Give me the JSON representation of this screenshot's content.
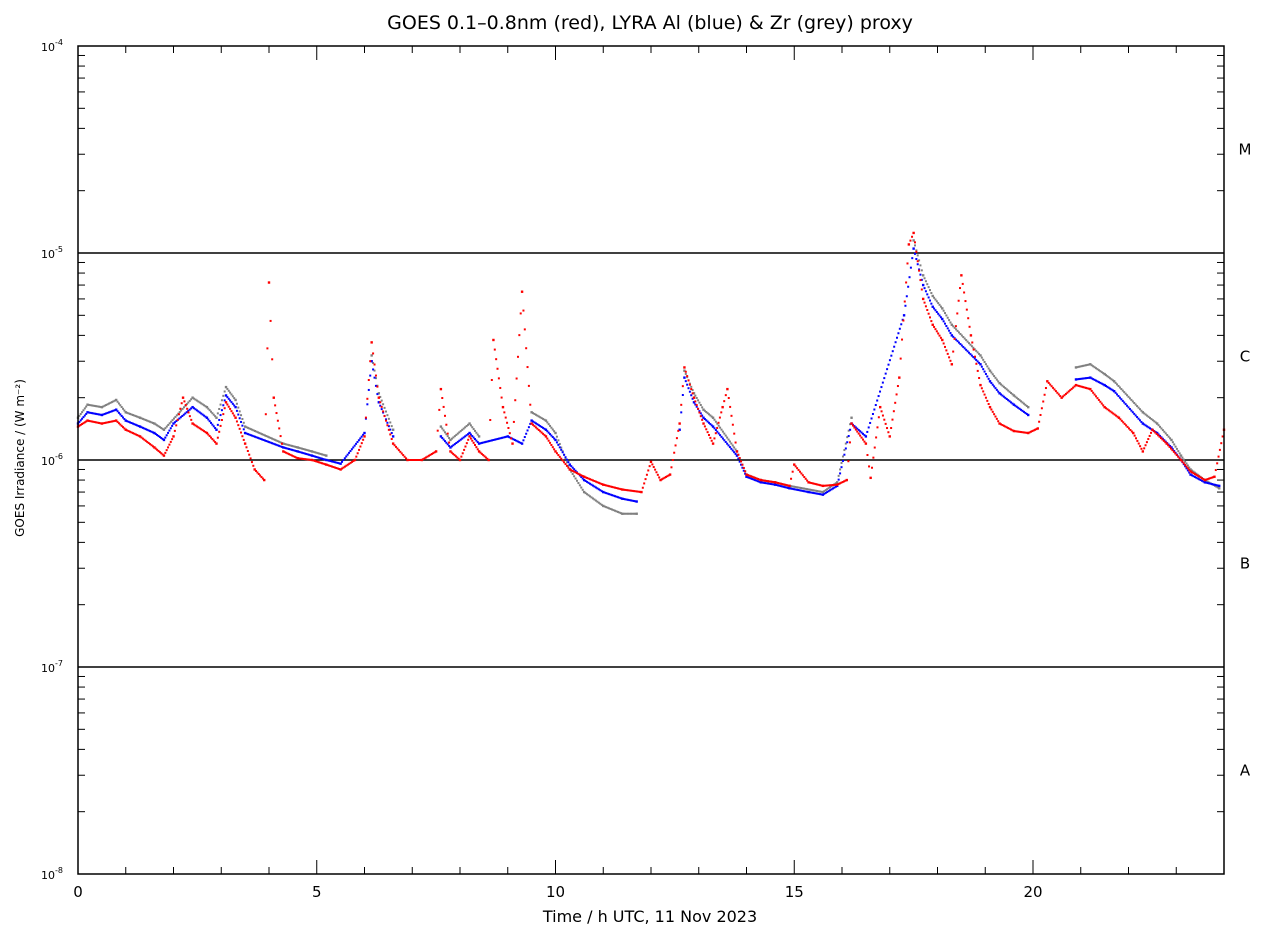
{
  "chart_data": {
    "type": "scatter",
    "title": "GOES 0.1–0.8nm (red), LYRA Al (blue) & Zr (grey) proxy",
    "xlabel": "Time / h UTC, 11 Nov 2023",
    "ylabel": "GOES Irradiance / (W m⁻²)",
    "xlim": [
      0,
      24
    ],
    "ylim": [
      1e-08,
      0.0001
    ],
    "yscale": "log",
    "x_ticks": [
      0,
      5,
      10,
      15,
      20
    ],
    "x_tick_labels": [
      "0",
      "5",
      "10",
      "15",
      "20"
    ],
    "y_ticks": [
      1e-08,
      1e-07,
      1e-06,
      1e-05,
      0.0001
    ],
    "y_tick_labels": [
      {
        "base": "10",
        "exp": "-8"
      },
      {
        "base": "10",
        "exp": "-7"
      },
      {
        "base": "10",
        "exp": "-6"
      },
      {
        "base": "10",
        "exp": "-5"
      },
      {
        "base": "10",
        "exp": "-4"
      }
    ],
    "class_levels": [
      1e-07,
      1e-06,
      1e-05
    ],
    "class_labels": [
      {
        "label": "A",
        "value": 3.2e-08
      },
      {
        "label": "B",
        "value": 3.2e-07
      },
      {
        "label": "C",
        "value": 3.2e-06
      },
      {
        "label": "M",
        "value": 3.2e-05
      }
    ],
    "grid": false,
    "series": [
      {
        "color": "#ff0000",
        "points": [
          [
            0.0,
            1.45e-06
          ],
          [
            0.2,
            1.55e-06
          ],
          [
            0.5,
            1.5e-06
          ],
          [
            0.8,
            1.55e-06
          ],
          [
            1.0,
            1.4e-06
          ],
          [
            1.3,
            1.3e-06
          ],
          [
            1.6,
            1.15e-06
          ],
          [
            1.8,
            1.05e-06
          ],
          [
            2.0,
            1.3e-06
          ],
          [
            2.2,
            2e-06
          ],
          [
            2.4,
            1.5e-06
          ],
          [
            2.7,
            1.35e-06
          ],
          [
            2.9,
            1.2e-06
          ],
          [
            3.1,
            1.9e-06
          ],
          [
            3.3,
            1.6e-06
          ],
          [
            3.5,
            1.2e-06
          ],
          [
            3.7,
            9e-07
          ],
          [
            3.9,
            8e-07
          ],
          [
            4.0,
            7.2e-06
          ],
          [
            4.1,
            2e-06
          ],
          [
            4.3,
            1.1e-06
          ],
          [
            4.6,
            1.02e-06
          ],
          [
            4.9,
            1e-06
          ],
          [
            5.2,
            9.5e-07
          ],
          [
            5.5,
            9e-07
          ],
          [
            5.8,
            1e-06
          ],
          [
            6.0,
            1.3e-06
          ],
          [
            6.15,
            3.7e-06
          ],
          [
            6.3,
            2e-06
          ],
          [
            6.6,
            1.2e-06
          ],
          [
            6.9,
            1e-06
          ],
          [
            7.2,
            1e-06
          ],
          [
            7.5,
            1.1e-06
          ],
          [
            7.6,
            2.2e-06
          ],
          [
            7.8,
            1.1e-06
          ],
          [
            8.0,
            1e-06
          ],
          [
            8.2,
            1.3e-06
          ],
          [
            8.4,
            1.1e-06
          ],
          [
            8.6,
            1e-06
          ],
          [
            8.7,
            3.8e-06
          ],
          [
            8.9,
            1.8e-06
          ],
          [
            9.1,
            1.2e-06
          ],
          [
            9.3,
            6.5e-06
          ],
          [
            9.5,
            1.5e-06
          ],
          [
            9.8,
            1.3e-06
          ],
          [
            10.0,
            1.1e-06
          ],
          [
            10.3,
            9e-07
          ],
          [
            10.6,
            8.3e-07
          ],
          [
            11.0,
            7.6e-07
          ],
          [
            11.4,
            7.2e-07
          ],
          [
            11.8,
            7e-07
          ],
          [
            12.0,
            9.8e-07
          ],
          [
            12.2,
            8e-07
          ],
          [
            12.4,
            8.5e-07
          ],
          [
            12.6,
            1.5e-06
          ],
          [
            12.7,
            2.8e-06
          ],
          [
            12.9,
            2e-06
          ],
          [
            13.1,
            1.5e-06
          ],
          [
            13.3,
            1.2e-06
          ],
          [
            13.5,
            1.8e-06
          ],
          [
            13.6,
            2.2e-06
          ],
          [
            13.8,
            1.1e-06
          ],
          [
            14.0,
            8.5e-07
          ],
          [
            14.3,
            8e-07
          ],
          [
            14.6,
            7.8e-07
          ],
          [
            14.9,
            7.5e-07
          ],
          [
            15.0,
            9.5e-07
          ],
          [
            15.3,
            7.8e-07
          ],
          [
            15.6,
            7.5e-07
          ],
          [
            15.9,
            7.6e-07
          ],
          [
            16.1,
            8e-07
          ],
          [
            16.2,
            1.5e-06
          ],
          [
            16.5,
            1.2e-06
          ],
          [
            16.6,
            8.2e-07
          ],
          [
            16.8,
            1.8e-06
          ],
          [
            17.0,
            1.3e-06
          ],
          [
            17.2,
            2.5e-06
          ],
          [
            17.4,
            1.1e-05
          ],
          [
            17.5,
            1.25e-05
          ],
          [
            17.7,
            6e-06
          ],
          [
            17.9,
            4.5e-06
          ],
          [
            18.1,
            3.8e-06
          ],
          [
            18.3,
            2.9e-06
          ],
          [
            18.5,
            7.8e-06
          ],
          [
            18.7,
            4e-06
          ],
          [
            18.9,
            2.3e-06
          ],
          [
            19.1,
            1.8e-06
          ],
          [
            19.3,
            1.5e-06
          ],
          [
            19.6,
            1.38e-06
          ],
          [
            19.9,
            1.35e-06
          ],
          [
            20.1,
            1.42e-06
          ],
          [
            20.3,
            2.4e-06
          ],
          [
            20.6,
            2e-06
          ],
          [
            20.9,
            2.3e-06
          ],
          [
            21.2,
            2.2e-06
          ],
          [
            21.5,
            1.8e-06
          ],
          [
            21.8,
            1.6e-06
          ],
          [
            22.1,
            1.35e-06
          ],
          [
            22.3,
            1.1e-06
          ],
          [
            22.5,
            1.4e-06
          ],
          [
            22.8,
            1.2e-06
          ],
          [
            23.1,
            1e-06
          ],
          [
            23.3,
            8.8e-07
          ],
          [
            23.6,
            8e-07
          ],
          [
            23.8,
            8.3e-07
          ],
          [
            24.0,
            1.4e-06
          ]
        ]
      },
      {
        "color": "#0000ff",
        "points": [
          [
            0.0,
            1.5e-06
          ],
          [
            0.2,
            1.7e-06
          ],
          [
            0.5,
            1.65e-06
          ],
          [
            0.8,
            1.75e-06
          ],
          [
            1.0,
            1.55e-06
          ],
          [
            1.3,
            1.45e-06
          ],
          [
            1.6,
            1.35e-06
          ],
          [
            1.8,
            1.25e-06
          ],
          [
            2.0,
            1.5e-06
          ],
          [
            2.4,
            1.8e-06
          ],
          [
            2.7,
            1.6e-06
          ],
          [
            2.9,
            1.4e-06
          ],
          [
            3.1,
            2.05e-06
          ],
          [
            3.3,
            1.8e-06
          ],
          [
            3.5,
            1.35e-06
          ],
          [
            4.3,
            1.15e-06
          ],
          [
            4.6,
            1.1e-06
          ],
          [
            4.9,
            1.05e-06
          ],
          [
            5.2,
            1e-06
          ],
          [
            5.5,
            9.6e-07
          ],
          [
            6.0,
            1.35e-06
          ],
          [
            6.15,
            3e-06
          ],
          [
            6.3,
            1.9e-06
          ],
          [
            6.6,
            1.3e-06
          ],
          [
            7.6,
            1.3e-06
          ],
          [
            7.8,
            1.15e-06
          ],
          [
            8.2,
            1.35e-06
          ],
          [
            8.4,
            1.2e-06
          ],
          [
            9.0,
            1.3e-06
          ],
          [
            9.3,
            1.2e-06
          ],
          [
            9.5,
            1.55e-06
          ],
          [
            9.8,
            1.4e-06
          ],
          [
            10.0,
            1.25e-06
          ],
          [
            10.3,
            9.5e-07
          ],
          [
            10.6,
            8e-07
          ],
          [
            11.0,
            7e-07
          ],
          [
            11.4,
            6.5e-07
          ],
          [
            11.7,
            6.3e-07
          ],
          [
            12.6,
            1.4e-06
          ],
          [
            12.7,
            2.5e-06
          ],
          [
            12.9,
            1.9e-06
          ],
          [
            13.1,
            1.6e-06
          ],
          [
            13.3,
            1.45e-06
          ],
          [
            13.8,
            1.05e-06
          ],
          [
            14.0,
            8.3e-07
          ],
          [
            14.3,
            7.8e-07
          ],
          [
            14.6,
            7.6e-07
          ],
          [
            14.9,
            7.3e-07
          ],
          [
            15.3,
            7e-07
          ],
          [
            15.6,
            6.8e-07
          ],
          [
            15.9,
            7.5e-07
          ],
          [
            16.2,
            1.5e-06
          ],
          [
            16.5,
            1.3e-06
          ],
          [
            17.3,
            5e-06
          ],
          [
            17.5,
            1.05e-05
          ],
          [
            17.7,
            7e-06
          ],
          [
            17.9,
            5.5e-06
          ],
          [
            18.1,
            4.8e-06
          ],
          [
            18.3,
            4e-06
          ],
          [
            18.9,
            2.9e-06
          ],
          [
            19.1,
            2.4e-06
          ],
          [
            19.3,
            2.1e-06
          ],
          [
            19.6,
            1.85e-06
          ],
          [
            19.9,
            1.65e-06
          ],
          [
            20.9,
            2.45e-06
          ],
          [
            21.2,
            2.5e-06
          ],
          [
            21.5,
            2.3e-06
          ],
          [
            21.7,
            2.15e-06
          ],
          [
            22.3,
            1.5e-06
          ],
          [
            22.6,
            1.35e-06
          ],
          [
            22.9,
            1.15e-06
          ],
          [
            23.1,
            1e-06
          ],
          [
            23.3,
            8.5e-07
          ],
          [
            23.6,
            7.8e-07
          ],
          [
            23.9,
            7.5e-07
          ]
        ]
      },
      {
        "color": "#808080",
        "points": [
          [
            0.0,
            1.6e-06
          ],
          [
            0.2,
            1.85e-06
          ],
          [
            0.5,
            1.8e-06
          ],
          [
            0.8,
            1.95e-06
          ],
          [
            1.0,
            1.7e-06
          ],
          [
            1.3,
            1.6e-06
          ],
          [
            1.6,
            1.5e-06
          ],
          [
            1.8,
            1.4e-06
          ],
          [
            2.4,
            2e-06
          ],
          [
            2.7,
            1.8e-06
          ],
          [
            2.9,
            1.6e-06
          ],
          [
            3.1,
            2.25e-06
          ],
          [
            3.3,
            1.95e-06
          ],
          [
            3.5,
            1.45e-06
          ],
          [
            4.3,
            1.2e-06
          ],
          [
            4.6,
            1.15e-06
          ],
          [
            4.9,
            1.1e-06
          ],
          [
            5.2,
            1.05e-06
          ],
          [
            6.15,
            3.2e-06
          ],
          [
            6.3,
            2.1e-06
          ],
          [
            6.6,
            1.4e-06
          ],
          [
            7.6,
            1.45e-06
          ],
          [
            7.8,
            1.25e-06
          ],
          [
            8.2,
            1.5e-06
          ],
          [
            8.4,
            1.3e-06
          ],
          [
            9.5,
            1.7e-06
          ],
          [
            9.8,
            1.55e-06
          ],
          [
            10.0,
            1.35e-06
          ],
          [
            10.3,
            9e-07
          ],
          [
            10.6,
            7e-07
          ],
          [
            11.0,
            6e-07
          ],
          [
            11.4,
            5.5e-07
          ],
          [
            11.7,
            5.5e-07
          ],
          [
            12.7,
            2.7e-06
          ],
          [
            12.9,
            2.1e-06
          ],
          [
            13.1,
            1.75e-06
          ],
          [
            13.3,
            1.6e-06
          ],
          [
            13.8,
            1.1e-06
          ],
          [
            14.0,
            8.5e-07
          ],
          [
            14.3,
            8e-07
          ],
          [
            14.6,
            7.8e-07
          ],
          [
            14.9,
            7.5e-07
          ],
          [
            15.6,
            7e-07
          ],
          [
            15.9,
            7.8e-07
          ],
          [
            16.2,
            1.6e-06
          ],
          [
            17.5,
            1.15e-05
          ],
          [
            17.7,
            7.8e-06
          ],
          [
            17.9,
            6.2e-06
          ],
          [
            18.1,
            5.4e-06
          ],
          [
            18.3,
            4.5e-06
          ],
          [
            18.9,
            3.2e-06
          ],
          [
            19.1,
            2.7e-06
          ],
          [
            19.3,
            2.35e-06
          ],
          [
            19.6,
            2.05e-06
          ],
          [
            19.9,
            1.8e-06
          ],
          [
            20.9,
            2.8e-06
          ],
          [
            21.2,
            2.9e-06
          ],
          [
            21.5,
            2.6e-06
          ],
          [
            21.7,
            2.4e-06
          ],
          [
            22.3,
            1.7e-06
          ],
          [
            22.6,
            1.5e-06
          ],
          [
            22.9,
            1.25e-06
          ],
          [
            23.1,
            1.05e-06
          ],
          [
            23.3,
            9e-07
          ],
          [
            23.6,
            8e-07
          ],
          [
            23.9,
            7.3e-07
          ]
        ]
      }
    ]
  }
}
